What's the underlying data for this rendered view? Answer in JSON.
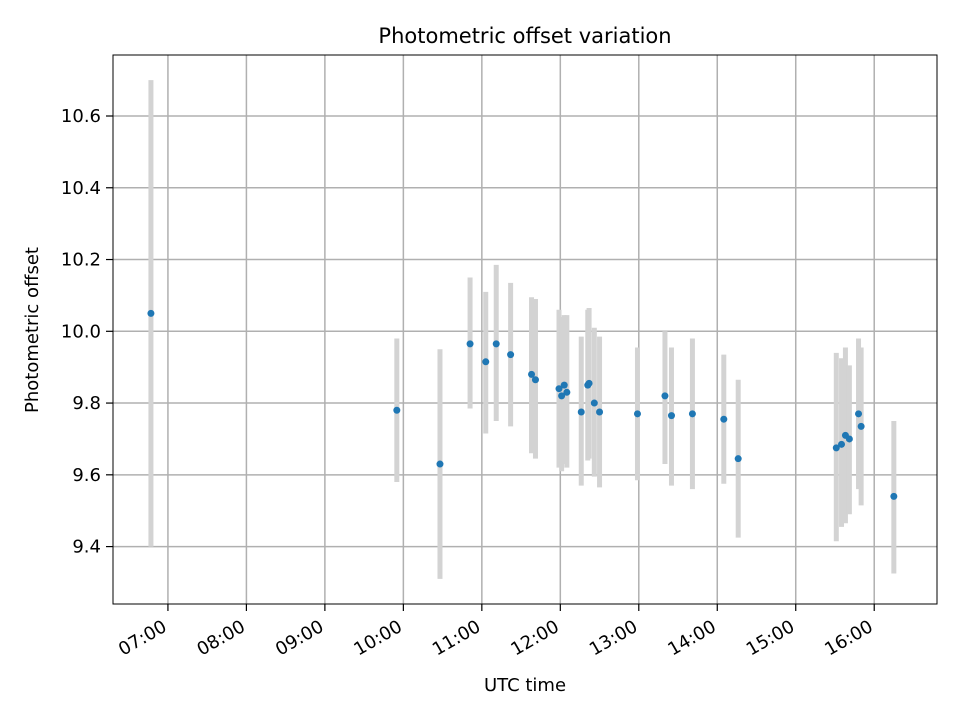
{
  "chart_data": {
    "type": "scatter",
    "title": "Photometric offset variation",
    "xlabel": "UTC time",
    "ylabel": "Photometric offset",
    "x_axis": "time",
    "xlim": [
      "06:18",
      "16:48"
    ],
    "ylim": [
      9.24,
      10.77
    ],
    "grid": true,
    "x_ticks": [
      "07:00",
      "08:00",
      "09:00",
      "10:00",
      "11:00",
      "12:00",
      "13:00",
      "14:00",
      "15:00",
      "16:00"
    ],
    "y_ticks": [
      9.4,
      9.6,
      9.8,
      10.0,
      10.2,
      10.4,
      10.6
    ],
    "marker_color": "#1f77b4",
    "errorbar_color": "#d3d3d3",
    "points": [
      {
        "time": "06:47",
        "y": 10.05,
        "low": 9.4,
        "high": 10.7
      },
      {
        "time": "09:55",
        "y": 9.78,
        "low": 9.58,
        "high": 9.98
      },
      {
        "time": "10:28",
        "y": 9.63,
        "low": 9.31,
        "high": 9.95
      },
      {
        "time": "10:51",
        "y": 9.965,
        "low": 9.785,
        "high": 10.15
      },
      {
        "time": "11:03",
        "y": 9.915,
        "low": 9.715,
        "high": 10.11
      },
      {
        "time": "11:11",
        "y": 9.965,
        "low": 9.75,
        "high": 10.185
      },
      {
        "time": "11:22",
        "y": 9.935,
        "low": 9.735,
        "high": 10.135
      },
      {
        "time": "11:38",
        "y": 9.88,
        "low": 9.66,
        "high": 10.095
      },
      {
        "time": "11:41",
        "y": 9.865,
        "low": 9.645,
        "high": 10.09
      },
      {
        "time": "11:59",
        "y": 9.84,
        "low": 9.62,
        "high": 10.06
      },
      {
        "time": "12:01",
        "y": 9.82,
        "low": 9.61,
        "high": 10.04
      },
      {
        "time": "12:03",
        "y": 9.85,
        "low": 9.63,
        "high": 10.045
      },
      {
        "time": "12:05",
        "y": 9.83,
        "low": 9.62,
        "high": 10.045
      },
      {
        "time": "12:16",
        "y": 9.775,
        "low": 9.57,
        "high": 9.985
      },
      {
        "time": "12:21",
        "y": 9.85,
        "low": 9.64,
        "high": 10.06
      },
      {
        "time": "12:22",
        "y": 9.855,
        "low": 9.645,
        "high": 10.065
      },
      {
        "time": "12:26",
        "y": 9.8,
        "low": 9.595,
        "high": 10.01
      },
      {
        "time": "12:30",
        "y": 9.775,
        "low": 9.565,
        "high": 9.985
      },
      {
        "time": "12:59",
        "y": 9.77,
        "low": 9.585,
        "high": 9.955
      },
      {
        "time": "13:20",
        "y": 9.82,
        "low": 9.63,
        "high": 10.0
      },
      {
        "time": "13:25",
        "y": 9.765,
        "low": 9.57,
        "high": 9.955
      },
      {
        "time": "13:41",
        "y": 9.77,
        "low": 9.56,
        "high": 9.98
      },
      {
        "time": "14:05",
        "y": 9.755,
        "low": 9.575,
        "high": 9.935
      },
      {
        "time": "14:16",
        "y": 9.645,
        "low": 9.425,
        "high": 9.865
      },
      {
        "time": "15:31",
        "y": 9.675,
        "low": 9.415,
        "high": 9.94
      },
      {
        "time": "15:35",
        "y": 9.685,
        "low": 9.455,
        "high": 9.925
      },
      {
        "time": "15:38",
        "y": 9.71,
        "low": 9.465,
        "high": 9.955
      },
      {
        "time": "15:41",
        "y": 9.7,
        "low": 9.49,
        "high": 9.905
      },
      {
        "time": "15:48",
        "y": 9.77,
        "low": 9.56,
        "high": 9.98
      },
      {
        "time": "15:50",
        "y": 9.735,
        "low": 9.515,
        "high": 9.955
      },
      {
        "time": "16:15",
        "y": 9.54,
        "low": 9.325,
        "high": 9.75
      }
    ]
  }
}
